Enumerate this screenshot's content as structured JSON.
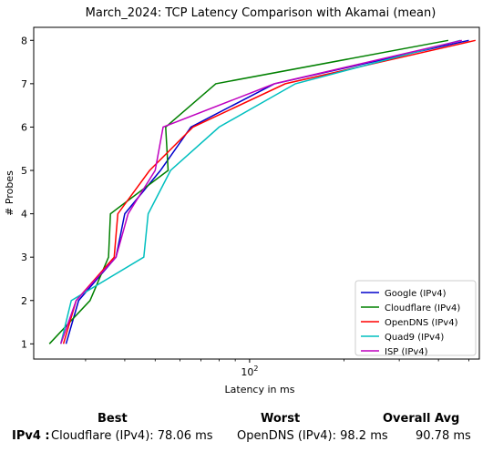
{
  "chart_data": {
    "type": "line",
    "title": "March_2024: TCP Latency Comparison with Akamai (mean)",
    "xlabel": "Latency in ms",
    "ylabel": "# Probes",
    "xscale": "log",
    "xlim": [
      20.5,
      540
    ],
    "ylim": [
      0.65,
      8.3
    ],
    "x_major_ticks": [
      {
        "value": 100,
        "label": "10^2"
      }
    ],
    "y_ticks": [
      1,
      2,
      3,
      4,
      5,
      6,
      7,
      8
    ],
    "grid": false,
    "legend_position": "bottom-right",
    "series": [
      {
        "name": "Google (IPv4)",
        "color": "#0000cc",
        "x": [
          26.0,
          28.5,
          37.5,
          40.0,
          52.0,
          65.0,
          120.0,
          500.0
        ],
        "y": [
          1,
          2,
          3,
          4,
          5,
          6,
          7,
          8
        ]
      },
      {
        "name": "Cloudflare (IPv4)",
        "color": "#008000",
        "x": [
          23.0,
          31.0,
          35.5,
          36.0,
          55.0,
          54.0,
          78.0,
          430.0
        ],
        "y": [
          1,
          2,
          3,
          4,
          5,
          6,
          7,
          8
        ]
      },
      {
        "name": "OpenDNS (IPv4)",
        "color": "#ff0000",
        "x": [
          25.5,
          28.0,
          37.0,
          38.0,
          48.0,
          66.0,
          130.0,
          525.0
        ],
        "y": [
          1,
          2,
          3,
          4,
          5,
          6,
          7,
          8
        ]
      },
      {
        "name": "Quad9 (IPv4)",
        "color": "#00bfbf",
        "x": [
          25.0,
          27.0,
          46.0,
          47.5,
          56.0,
          80.0,
          140.0,
          470.0
        ],
        "y": [
          1,
          2,
          3,
          4,
          5,
          6,
          7,
          8
        ]
      },
      {
        "name": "ISP (IPv4)",
        "color": "#bf00bf",
        "x": [
          25.0,
          28.0,
          37.5,
          41.0,
          50.0,
          53.0,
          120.0,
          475.0
        ],
        "y": [
          1,
          2,
          3,
          4,
          5,
          6,
          7,
          8
        ]
      }
    ]
  },
  "summary": {
    "headers": {
      "best": "Best",
      "worst": "Worst",
      "overall": "Overall Avg"
    },
    "row_label": "IPv4 :",
    "best": "Cloudflare (IPv4): 78.06 ms",
    "worst": "OpenDNS (IPv4): 98.2 ms",
    "overall": "90.78 ms"
  }
}
